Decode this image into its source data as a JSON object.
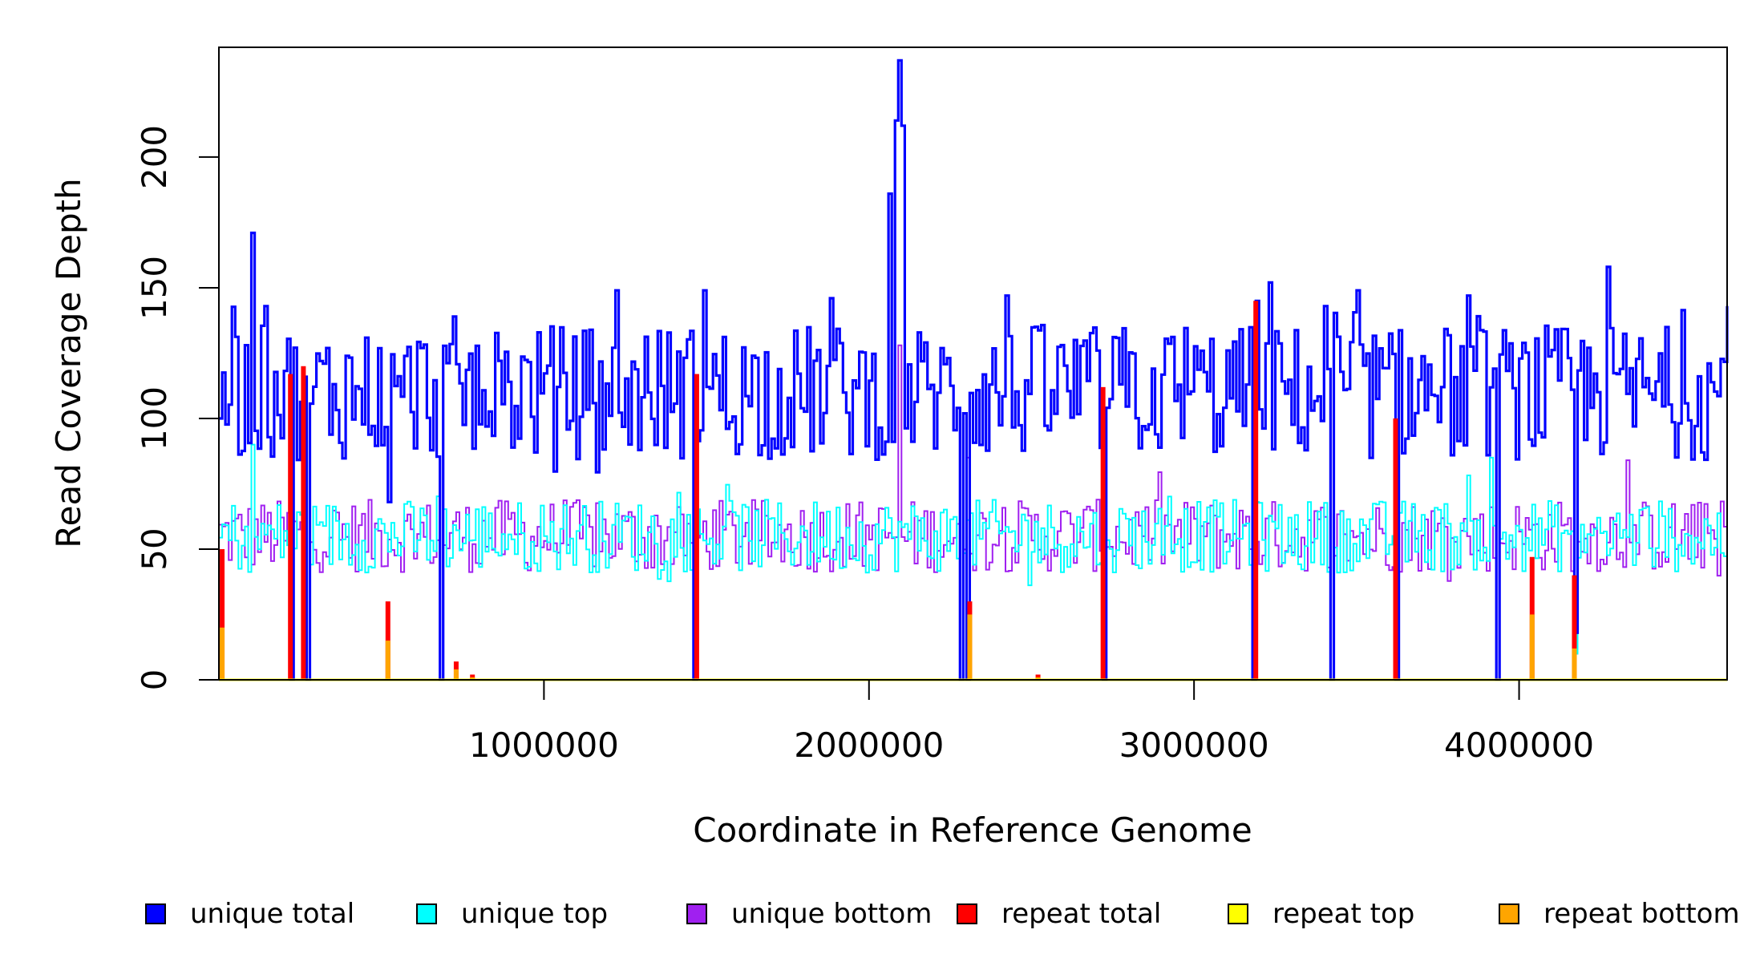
{
  "chart_data": {
    "type": "line",
    "title": "",
    "xlabel": "Coordinate in Reference Genome",
    "ylabel": "Read Coverage Depth",
    "xlim": [
      0,
      4640000
    ],
    "ylim": [
      0,
      242
    ],
    "x_ticks": [
      1000000,
      2000000,
      3000000,
      4000000
    ],
    "x_tick_labels": [
      "1000000",
      "2000000",
      "3000000",
      "4000000"
    ],
    "y_ticks": [
      0,
      50,
      100,
      150,
      200
    ],
    "y_tick_labels": [
      "0",
      "50",
      "100",
      "150",
      "200"
    ],
    "grid": false,
    "legend_position": "bottom",
    "series": [
      {
        "name": "unique total",
        "color": "#0000ff",
        "bin_width": 10000,
        "baseline": 110,
        "peaks": [
          [
            1000,
            100
          ],
          [
            100000,
            171
          ],
          [
            140000,
            143
          ],
          [
            720000,
            139
          ],
          [
            1220000,
            149
          ],
          [
            1490000,
            149
          ],
          [
            1880000,
            146
          ],
          [
            2060000,
            186
          ],
          [
            2080000,
            214
          ],
          [
            2090000,
            237
          ],
          [
            2100000,
            212
          ],
          [
            2420000,
            147
          ],
          [
            3190000,
            145
          ],
          [
            3230000,
            152
          ],
          [
            3400000,
            143
          ],
          [
            3500000,
            149
          ],
          [
            3840000,
            147
          ],
          [
            4270000,
            158
          ],
          [
            4640000,
            143
          ]
        ],
        "dips": [
          [
            220000,
            0
          ],
          [
            270000,
            0
          ],
          [
            520000,
            68
          ],
          [
            680000,
            0
          ],
          [
            1460000,
            0
          ],
          [
            2280000,
            0
          ],
          [
            2300000,
            0
          ],
          [
            2720000,
            0
          ],
          [
            3180000,
            0
          ],
          [
            3420000,
            0
          ],
          [
            3620000,
            0
          ],
          [
            3930000,
            0
          ],
          [
            4170000,
            18
          ]
        ],
        "values_summary": "about 80-150, mean about 110"
      },
      {
        "name": "unique top",
        "color": "#00ffff",
        "bin_width": 10000,
        "baseline": 55,
        "peaks": [
          [
            100000,
            90
          ],
          [
            3910000,
            85
          ]
        ],
        "dips": [
          [
            220000,
            0
          ],
          [
            270000,
            0
          ],
          [
            680000,
            0
          ],
          [
            1460000,
            0
          ],
          [
            2280000,
            0
          ],
          [
            2720000,
            0
          ],
          [
            3180000,
            0
          ],
          [
            3420000,
            0
          ],
          [
            3620000,
            0
          ],
          [
            3930000,
            0
          ],
          [
            4170000,
            10
          ]
        ],
        "values_summary": "about 35-80, mean about 55"
      },
      {
        "name": "unique bottom",
        "color": "#a020f0",
        "bin_width": 10000,
        "baseline": 55,
        "peaks": [
          [
            2090000,
            128
          ],
          [
            2300000,
            85
          ],
          [
            4330000,
            84
          ]
        ],
        "dips": [
          [
            220000,
            0
          ],
          [
            270000,
            0
          ],
          [
            680000,
            0
          ],
          [
            1460000,
            0
          ],
          [
            2280000,
            0
          ],
          [
            2720000,
            0
          ],
          [
            3180000,
            0
          ],
          [
            3420000,
            0
          ],
          [
            3620000,
            0
          ],
          [
            3930000,
            0
          ],
          [
            4170000,
            10
          ]
        ],
        "values_summary": "about 35-85, mean about 55"
      },
      {
        "name": "repeat total",
        "color": "#ff0000",
        "baseline": 0,
        "peaks": [
          [
            10000,
            50
          ],
          [
            220000,
            117
          ],
          [
            260000,
            120
          ],
          [
            520000,
            30
          ],
          [
            730000,
            7
          ],
          [
            780000,
            2
          ],
          [
            1470000,
            117
          ],
          [
            2310000,
            30
          ],
          [
            2520000,
            2
          ],
          [
            2720000,
            112
          ],
          [
            3190000,
            145
          ],
          [
            3620000,
            100
          ],
          [
            4040000,
            47
          ],
          [
            4170000,
            40
          ]
        ]
      },
      {
        "name": "repeat top",
        "color": "#ffff00",
        "baseline": 0,
        "peaks": []
      },
      {
        "name": "repeat bottom",
        "color": "#ffa500",
        "baseline": 0,
        "peaks": [
          [
            10000,
            20
          ],
          [
            520000,
            15
          ],
          [
            730000,
            4
          ],
          [
            780000,
            1
          ],
          [
            2310000,
            25
          ],
          [
            2520000,
            1
          ],
          [
            4040000,
            25
          ],
          [
            4170000,
            12
          ]
        ]
      }
    ]
  },
  "legend": {
    "items": [
      {
        "label": "unique total",
        "color": "#0000ff"
      },
      {
        "label": "unique top",
        "color": "#00ffff"
      },
      {
        "label": "unique bottom",
        "color": "#a020f0"
      },
      {
        "label": "repeat total",
        "color": "#ff0000"
      },
      {
        "label": "repeat top",
        "color": "#ffff00"
      },
      {
        "label": "repeat bottom",
        "color": "#ffa500"
      }
    ]
  }
}
